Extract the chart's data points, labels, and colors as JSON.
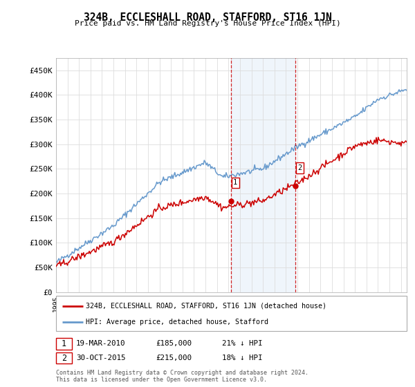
{
  "title": "324B, ECCLESHALL ROAD, STAFFORD, ST16 1JN",
  "subtitle": "Price paid vs. HM Land Registry's House Price Index (HPI)",
  "ylabel_ticks": [
    "£0",
    "£50K",
    "£100K",
    "£150K",
    "£200K",
    "£250K",
    "£300K",
    "£350K",
    "£400K",
    "£450K"
  ],
  "ylim": [
    0,
    475000
  ],
  "ytick_vals": [
    0,
    50000,
    100000,
    150000,
    200000,
    250000,
    300000,
    350000,
    400000,
    450000
  ],
  "legend_house": "324B, ECCLESHALL ROAD, STAFFORD, ST16 1JN (detached house)",
  "legend_hpi": "HPI: Average price, detached house, Stafford",
  "point1_date": "19-MAR-2010",
  "point1_price": "£185,000",
  "point1_hpi": "21% ↓ HPI",
  "point2_date": "30-OCT-2015",
  "point2_price": "£215,000",
  "point2_hpi": "18% ↓ HPI",
  "point1_x": 2010.21,
  "point1_y": 185000,
  "point2_x": 2015.83,
  "point2_y": 215000,
  "vline1_x": 2010.21,
  "vline2_x": 2015.83,
  "house_color": "#cc0000",
  "hpi_color": "#6699cc",
  "vline_color": "#cc0000",
  "span_color": "#aaccee",
  "footer": "Contains HM Land Registry data © Crown copyright and database right 2024.\nThis data is licensed under the Open Government Licence v3.0.",
  "xmin": 1995,
  "xmax": 2025.5
}
